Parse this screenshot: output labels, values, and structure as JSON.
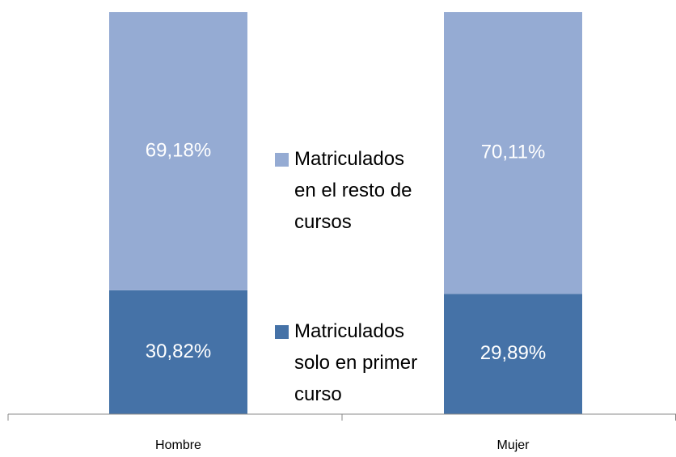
{
  "chart_data": {
    "type": "stacked-bar",
    "categories": [
      "Hombre",
      "Mujer"
    ],
    "series": [
      {
        "name": "Matriculados solo en primer curso",
        "color": "#4572a7",
        "values": [
          30.82,
          29.89
        ],
        "value_labels": [
          "30,82%",
          "29,89%"
        ]
      },
      {
        "name": "Matriculados en el resto de cursos",
        "color": "#95abd3",
        "values": [
          69.18,
          70.11
        ],
        "value_labels": [
          "69,18%",
          "70,11%"
        ]
      }
    ]
  }
}
